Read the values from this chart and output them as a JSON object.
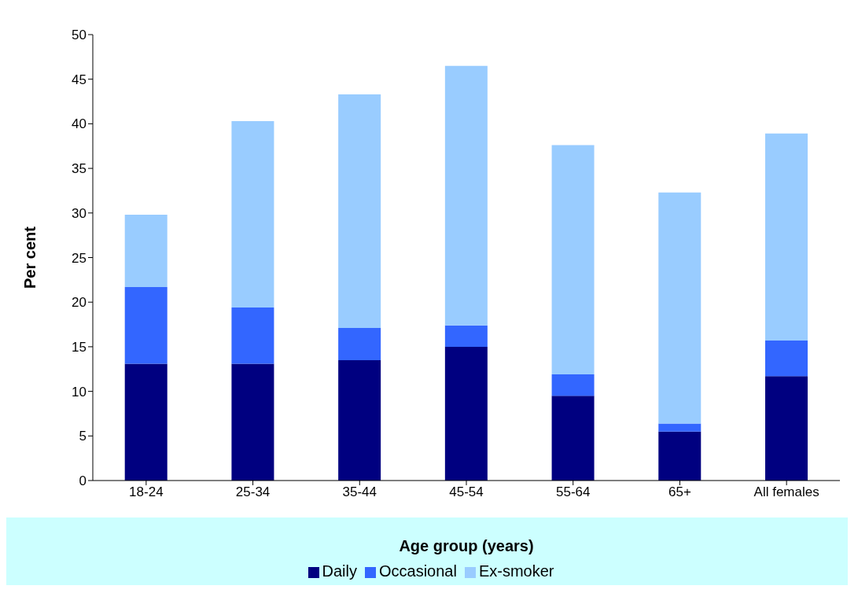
{
  "chart_data": {
    "type": "bar",
    "stacked": true,
    "xlabel": "Age group (years)",
    "ylabel": "Per cent",
    "categories": [
      "18-24",
      "25-34",
      "35-44",
      "45-54",
      "55-64",
      "65+",
      "All females"
    ],
    "series": [
      {
        "name": "Daily",
        "color": "#000080",
        "values": [
          13.1,
          13.1,
          13.5,
          15.0,
          9.5,
          5.5,
          11.7
        ]
      },
      {
        "name": "Occasional",
        "color": "#3366ff",
        "values": [
          8.6,
          6.3,
          3.6,
          2.4,
          2.4,
          0.9,
          4.0
        ]
      },
      {
        "name": "Ex-smoker",
        "color": "#99ccff",
        "values": [
          8.1,
          20.9,
          26.2,
          29.1,
          25.7,
          25.9,
          23.2
        ]
      }
    ],
    "ylim": [
      0,
      50
    ],
    "yticks": [
      0,
      5,
      10,
      15,
      20,
      25,
      30,
      35,
      40,
      45,
      50
    ],
    "grid": false,
    "legend": "bottom"
  }
}
